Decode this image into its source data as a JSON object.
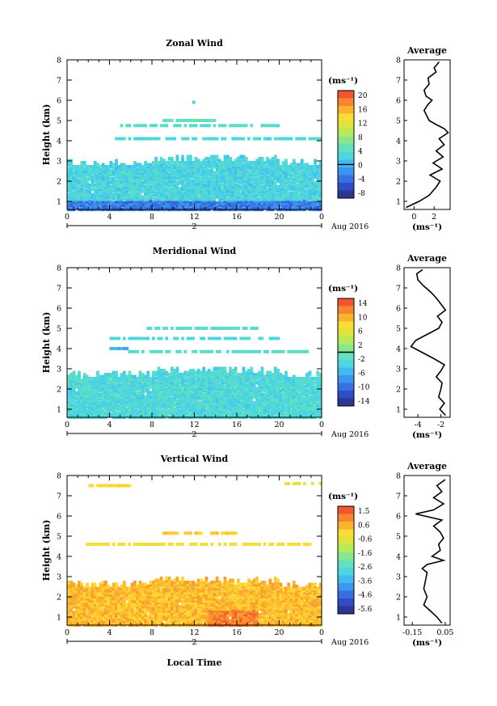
{
  "figure": {
    "date_label": "Aug 2016",
    "day_label": "2",
    "xlabel": "Local Time",
    "avg_title": "Average",
    "unit_label": "(ms⁻¹)"
  },
  "chart_data": [
    {
      "type": "heatmap",
      "title": "Zonal Wind",
      "ylabel": "Height (km)",
      "x_ticks": [
        "0",
        "4",
        "8",
        "12",
        "16",
        "20",
        "0"
      ],
      "xlim": [
        0,
        24
      ],
      "y_ticks": [
        "1",
        "2",
        "3",
        "4",
        "5",
        "6",
        "7",
        "8"
      ],
      "ylim": [
        0.6,
        8
      ],
      "colorbar": {
        "label": "(ms⁻¹)",
        "ticks": [
          "20",
          "16",
          "12",
          "8",
          "4",
          "0",
          "-4",
          "-8"
        ],
        "range": [
          -10,
          22
        ],
        "zero_line": 0
      },
      "field": {
        "lower_layer_top_km": 3.1,
        "lower_layer_value": 2.5,
        "upper_bands": [
          {
            "height_km": 4.1,
            "x_from": 4.5,
            "x_to": 24,
            "value": 3
          },
          {
            "height_km": 4.75,
            "x_from": 5,
            "x_to": 20,
            "value": 4
          },
          {
            "height_km": 5.0,
            "x_from": 9,
            "x_to": 14,
            "value": 5
          },
          {
            "height_km": 5.9,
            "x_from": 11.8,
            "x_to": 12.1,
            "value": 3
          }
        ]
      },
      "profile": {
        "x_ticks": [
          "0",
          "2"
        ],
        "xlim": [
          -1,
          3.6
        ],
        "xlabel": "(ms⁻¹)",
        "height_km": [
          0.7,
          1.0,
          1.3,
          1.7,
          2.0,
          2.3,
          2.6,
          2.9,
          3.2,
          3.5,
          3.8,
          4.1,
          4.4,
          4.6,
          4.8,
          5.0,
          5.2,
          5.5,
          5.8,
          6.0,
          6.2,
          6.5,
          6.8,
          7.1,
          7.4,
          7.6,
          7.9
        ],
        "value": [
          -0.8,
          0.5,
          1.5,
          2.2,
          2.6,
          1.6,
          2.8,
          1.9,
          2.9,
          2.2,
          3.0,
          2.5,
          3.4,
          3.0,
          2.2,
          1.5,
          1.3,
          1.0,
          1.4,
          1.8,
          1.2,
          1.0,
          1.5,
          1.4,
          2.2,
          2.0,
          2.5
        ]
      }
    },
    {
      "type": "heatmap",
      "title": "Meridional Wind",
      "ylabel": "Height (km)",
      "x_ticks": [
        "0",
        "4",
        "8",
        "12",
        "16",
        "20",
        "0"
      ],
      "xlim": [
        0,
        24
      ],
      "y_ticks": [
        "1",
        "2",
        "3",
        "4",
        "5",
        "6",
        "7",
        "8"
      ],
      "ylim": [
        0.6,
        8
      ],
      "colorbar": {
        "label": "(ms⁻¹)",
        "ticks": [
          "14",
          "10",
          "6",
          "2",
          "-2",
          "-6",
          "-10",
          "-14"
        ],
        "range": [
          -16,
          16
        ],
        "zero_line": 0
      },
      "field": {
        "lower_layer_top_km": 2.9,
        "lower_layer_value": -3,
        "upper_bands": [
          {
            "height_km": 3.85,
            "x_from": 5.5,
            "x_to": 23,
            "value": -2
          },
          {
            "height_km": 4.5,
            "x_from": 4,
            "x_to": 20,
            "value": -3
          },
          {
            "height_km": 5.0,
            "x_from": 7.5,
            "x_to": 18,
            "value": -2
          },
          {
            "height_km": 4.0,
            "x_from": 4,
            "x_to": 6,
            "value": -6
          }
        ]
      },
      "profile": {
        "x_ticks": [
          "-4",
          "-2"
        ],
        "xlim": [
          -5.2,
          -1.2
        ],
        "xlabel": "(ms⁻¹)",
        "height_km": [
          0.7,
          1.0,
          1.3,
          1.6,
          2.0,
          2.3,
          2.6,
          2.9,
          3.2,
          3.5,
          3.8,
          4.1,
          4.4,
          4.7,
          5.0,
          5.3,
          5.6,
          5.9,
          6.2,
          6.5,
          6.8,
          7.1,
          7.4,
          7.7,
          7.9
        ],
        "value": [
          -1.6,
          -2.1,
          -1.7,
          -2.2,
          -2.0,
          -1.9,
          -2.4,
          -2.0,
          -1.7,
          -2.6,
          -3.6,
          -4.6,
          -4.2,
          -3.2,
          -2.2,
          -1.9,
          -2.3,
          -1.6,
          -2.0,
          -2.4,
          -2.9,
          -3.5,
          -4.0,
          -4.1,
          -3.6
        ]
      }
    },
    {
      "type": "heatmap",
      "title": "Vertical Wind",
      "ylabel": "Height (km)",
      "x_ticks": [
        "0",
        "4",
        "8",
        "12",
        "16",
        "20",
        "0"
      ],
      "xlim": [
        0,
        24
      ],
      "y_ticks": [
        "1",
        "2",
        "3",
        "4",
        "5",
        "6",
        "7",
        "8"
      ],
      "ylim": [
        0.6,
        8
      ],
      "colorbar": {
        "label": "(ms⁻¹)",
        "ticks": [
          "1.5",
          "0.6",
          "-0.6",
          "-1.6",
          "-2.6",
          "-3.6",
          "-4.6",
          "-5.6"
        ],
        "range": [
          -6.2,
          2.0
        ],
        "zero_line": null
      },
      "field": {
        "lower_layer_top_km": 2.8,
        "lower_layer_value": 0.4,
        "upper_bands": [
          {
            "height_km": 5.15,
            "x_from": 9,
            "x_to": 16,
            "value": 0.2
          },
          {
            "height_km": 4.6,
            "x_from": 1,
            "x_to": 23,
            "value": -0.2
          },
          {
            "height_km": 7.5,
            "x_from": 2,
            "x_to": 6,
            "value": 0.0
          },
          {
            "height_km": 7.6,
            "x_from": 20,
            "x_to": 24,
            "value": -0.4
          }
        ]
      },
      "profile": {
        "x_ticks": [
          "-0.15",
          "0.05"
        ],
        "xlim": [
          -0.2,
          0.08
        ],
        "xlabel": "(ms⁻¹)",
        "height_km": [
          0.7,
          1.0,
          1.3,
          1.6,
          2.0,
          2.4,
          2.8,
          3.2,
          3.4,
          3.6,
          3.8,
          4.0,
          4.3,
          4.6,
          4.9,
          5.2,
          5.5,
          5.8,
          6.1,
          6.3,
          6.6,
          6.9,
          7.2,
          7.5,
          7.8
        ],
        "value": [
          0.03,
          0.0,
          -0.04,
          -0.08,
          -0.06,
          -0.08,
          -0.07,
          -0.06,
          -0.09,
          -0.06,
          0.04,
          -0.03,
          0.02,
          0.01,
          0.04,
          0.02,
          -0.02,
          0.03,
          -0.13,
          -0.02,
          0.04,
          -0.02,
          0.03,
          0.0,
          0.05
        ]
      }
    }
  ]
}
